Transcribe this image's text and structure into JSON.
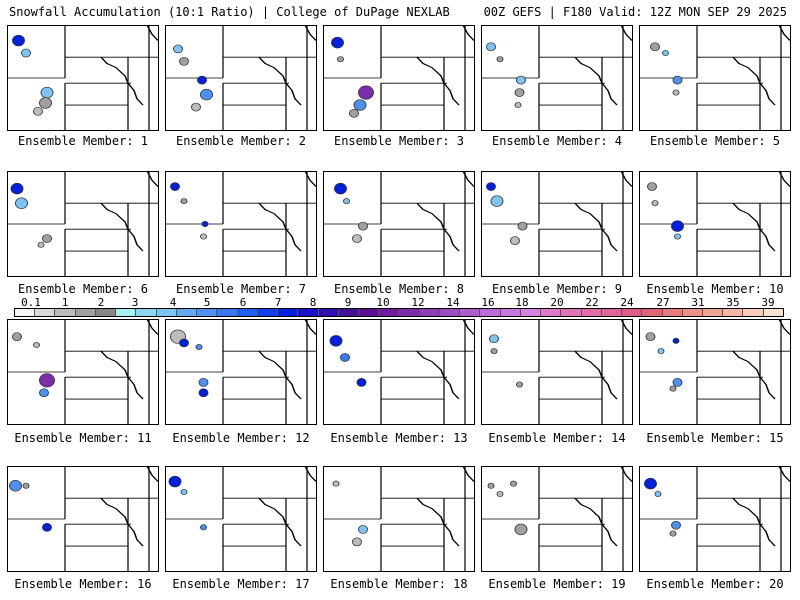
{
  "header": {
    "left": "Snowfall Accumulation (10:1 Ratio) | College of DuPage NEXLAB",
    "right": "00Z GEFS | F180 Valid: 12Z MON SEP 29 2025"
  },
  "colorbar": {
    "labels": [
      "0.1",
      "1",
      "2",
      "3",
      "4",
      "5",
      "6",
      "7",
      "8",
      "9",
      "10",
      "12",
      "14",
      "16",
      "18",
      "20",
      "22",
      "24",
      "27",
      "31",
      "35",
      "39"
    ],
    "colors": [
      "#f4f4f4",
      "#d8d8d8",
      "#bcbcbc",
      "#a0a0a0",
      "#868686",
      "#a8f0f0",
      "#88d8f0",
      "#7cc4f4",
      "#64a8f0",
      "#4c90f0",
      "#3878f0",
      "#2060f0",
      "#1040e8",
      "#0020e0",
      "#1a10c8",
      "#3010b0",
      "#441098",
      "#581090",
      "#6c1c9c",
      "#7c2ca8",
      "#8c3cb4",
      "#9c4cc0",
      "#ac5ccc",
      "#bc6cd8",
      "#c878dc",
      "#d484dc",
      "#dc7cc8",
      "#e074b8",
      "#e06ca8",
      "#e06498",
      "#e05c88",
      "#e06478",
      "#e87c7c",
      "#ec9088",
      "#f0a494",
      "#f4b8a4",
      "#f8ccb8",
      "#fce0d0"
    ]
  },
  "ensemble": {
    "members": [
      {
        "label": "Ensemble Member: 1",
        "blobs": [
          [
            0.07,
            0.14,
            0.04,
            "#0020e0"
          ],
          [
            0.12,
            0.26,
            0.03,
            "#7cc4f4"
          ],
          [
            0.26,
            0.64,
            0.04,
            "#7cc4f4"
          ],
          [
            0.25,
            0.74,
            0.04,
            "#a0a0a0"
          ],
          [
            0.2,
            0.82,
            0.03,
            "#bcbcbc"
          ]
        ]
      },
      {
        "label": "Ensemble Member: 2",
        "blobs": [
          [
            0.08,
            0.22,
            0.03,
            "#7cc4f4"
          ],
          [
            0.12,
            0.34,
            0.03,
            "#a0a0a0"
          ],
          [
            0.24,
            0.52,
            0.03,
            "#0020e0"
          ],
          [
            0.27,
            0.66,
            0.04,
            "#4c90f0"
          ],
          [
            0.2,
            0.78,
            0.03,
            "#bcbcbc"
          ]
        ]
      },
      {
        "label": "Ensemble Member: 3",
        "blobs": [
          [
            0.09,
            0.16,
            0.04,
            "#0020e0"
          ],
          [
            0.11,
            0.32,
            0.02,
            "#a0a0a0"
          ],
          [
            0.28,
            0.64,
            0.05,
            "#7c2ca8"
          ],
          [
            0.24,
            0.76,
            0.04,
            "#4c90f0"
          ],
          [
            0.2,
            0.84,
            0.03,
            "#a0a0a0"
          ]
        ]
      },
      {
        "label": "Ensemble Member: 4",
        "blobs": [
          [
            0.06,
            0.2,
            0.03,
            "#7cc4f4"
          ],
          [
            0.12,
            0.32,
            0.02,
            "#a0a0a0"
          ],
          [
            0.26,
            0.52,
            0.03,
            "#7cc4f4"
          ],
          [
            0.25,
            0.64,
            0.03,
            "#a0a0a0"
          ],
          [
            0.24,
            0.76,
            0.02,
            "#bcbcbc"
          ]
        ]
      },
      {
        "label": "Ensemble Member: 5",
        "blobs": [
          [
            0.1,
            0.2,
            0.03,
            "#a0a0a0"
          ],
          [
            0.17,
            0.26,
            0.02,
            "#7cc4f4"
          ],
          [
            0.25,
            0.52,
            0.03,
            "#4c90f0"
          ],
          [
            0.24,
            0.64,
            0.02,
            "#bcbcbc"
          ]
        ]
      },
      {
        "label": "Ensemble Member: 6",
        "blobs": [
          [
            0.06,
            0.16,
            0.04,
            "#0020e0"
          ],
          [
            0.09,
            0.3,
            0.04,
            "#7cc4f4"
          ],
          [
            0.26,
            0.64,
            0.03,
            "#a0a0a0"
          ],
          [
            0.22,
            0.7,
            0.02,
            "#bcbcbc"
          ]
        ]
      },
      {
        "label": "Ensemble Member: 7",
        "blobs": [
          [
            0.06,
            0.14,
            0.03,
            "#0020e0"
          ],
          [
            0.12,
            0.28,
            0.02,
            "#a0a0a0"
          ],
          [
            0.26,
            0.5,
            0.02,
            "#0020e0"
          ],
          [
            0.25,
            0.62,
            0.02,
            "#bcbcbc"
          ]
        ]
      },
      {
        "label": "Ensemble Member: 8",
        "blobs": [
          [
            0.11,
            0.16,
            0.04,
            "#0020e0"
          ],
          [
            0.15,
            0.28,
            0.02,
            "#7cc4f4"
          ],
          [
            0.26,
            0.52,
            0.03,
            "#a0a0a0"
          ],
          [
            0.22,
            0.64,
            0.03,
            "#bcbcbc"
          ]
        ]
      },
      {
        "label": "Ensemble Member: 9",
        "blobs": [
          [
            0.06,
            0.14,
            0.03,
            "#0020e0"
          ],
          [
            0.1,
            0.28,
            0.04,
            "#7cc4f4"
          ],
          [
            0.27,
            0.52,
            0.03,
            "#a0a0a0"
          ],
          [
            0.22,
            0.66,
            0.03,
            "#bcbcbc"
          ]
        ]
      },
      {
        "label": "Ensemble Member: 10",
        "blobs": [
          [
            0.08,
            0.14,
            0.03,
            "#a0a0a0"
          ],
          [
            0.1,
            0.3,
            0.02,
            "#bcbcbc"
          ],
          [
            0.25,
            0.52,
            0.04,
            "#0020e0"
          ],
          [
            0.25,
            0.62,
            0.02,
            "#7cc4f4"
          ]
        ]
      },
      {
        "label": "Ensemble Member: 11",
        "blobs": [
          [
            0.06,
            0.16,
            0.03,
            "#a0a0a0"
          ],
          [
            0.19,
            0.24,
            0.02,
            "#bcbcbc"
          ],
          [
            0.26,
            0.58,
            0.05,
            "#7c2ca8"
          ],
          [
            0.24,
            0.7,
            0.03,
            "#4c90f0"
          ]
        ]
      },
      {
        "label": "Ensemble Member: 12",
        "blobs": [
          [
            0.08,
            0.16,
            0.05,
            "#bcbcbc"
          ],
          [
            0.12,
            0.22,
            0.03,
            "#0020e0"
          ],
          [
            0.22,
            0.26,
            0.02,
            "#4c90f0"
          ],
          [
            0.25,
            0.6,
            0.03,
            "#4c90f0"
          ],
          [
            0.25,
            0.7,
            0.03,
            "#0020e0"
          ]
        ]
      },
      {
        "label": "Ensemble Member: 13",
        "blobs": [
          [
            0.08,
            0.2,
            0.04,
            "#0020e0"
          ],
          [
            0.14,
            0.36,
            0.03,
            "#3878f0"
          ],
          [
            0.25,
            0.6,
            0.03,
            "#0020e0"
          ]
        ]
      },
      {
        "label": "Ensemble Member: 14",
        "blobs": [
          [
            0.08,
            0.18,
            0.03,
            "#7cc4f4"
          ],
          [
            0.08,
            0.3,
            0.02,
            "#a0a0a0"
          ],
          [
            0.25,
            0.62,
            0.02,
            "#a0a0a0"
          ]
        ]
      },
      {
        "label": "Ensemble Member: 15",
        "blobs": [
          [
            0.07,
            0.16,
            0.03,
            "#a0a0a0"
          ],
          [
            0.14,
            0.3,
            0.02,
            "#7cc4f4"
          ],
          [
            0.25,
            0.6,
            0.03,
            "#4c90f0"
          ],
          [
            0.22,
            0.66,
            0.02,
            "#a0a0a0"
          ],
          [
            0.24,
            0.2,
            0.02,
            "#0020e0"
          ]
        ]
      },
      {
        "label": "Ensemble Member: 16",
        "blobs": [
          [
            0.05,
            0.18,
            0.04,
            "#4c90f0"
          ],
          [
            0.12,
            0.18,
            0.02,
            "#a0a0a0"
          ],
          [
            0.26,
            0.58,
            0.03,
            "#0020e0"
          ]
        ]
      },
      {
        "label": "Ensemble Member: 17",
        "blobs": [
          [
            0.06,
            0.14,
            0.04,
            "#0020e0"
          ],
          [
            0.12,
            0.24,
            0.02,
            "#7cc4f4"
          ],
          [
            0.25,
            0.58,
            0.02,
            "#4c90f0"
          ]
        ]
      },
      {
        "label": "Ensemble Member: 18",
        "blobs": [
          [
            0.08,
            0.16,
            0.02,
            "#bcbcbc"
          ],
          [
            0.26,
            0.6,
            0.03,
            "#7cc4f4"
          ],
          [
            0.22,
            0.72,
            0.03,
            "#bcbcbc"
          ]
        ]
      },
      {
        "label": "Ensemble Member: 19",
        "blobs": [
          [
            0.06,
            0.18,
            0.02,
            "#a0a0a0"
          ],
          [
            0.12,
            0.26,
            0.02,
            "#bcbcbc"
          ],
          [
            0.21,
            0.16,
            0.02,
            "#a0a0a0"
          ],
          [
            0.26,
            0.6,
            0.04,
            "#a0a0a0"
          ]
        ]
      },
      {
        "label": "Ensemble Member: 20",
        "blobs": [
          [
            0.07,
            0.16,
            0.04,
            "#0020e0"
          ],
          [
            0.12,
            0.26,
            0.02,
            "#7cc4f4"
          ],
          [
            0.24,
            0.56,
            0.03,
            "#4c90f0"
          ],
          [
            0.22,
            0.64,
            0.02,
            "#a0a0a0"
          ]
        ]
      }
    ]
  }
}
